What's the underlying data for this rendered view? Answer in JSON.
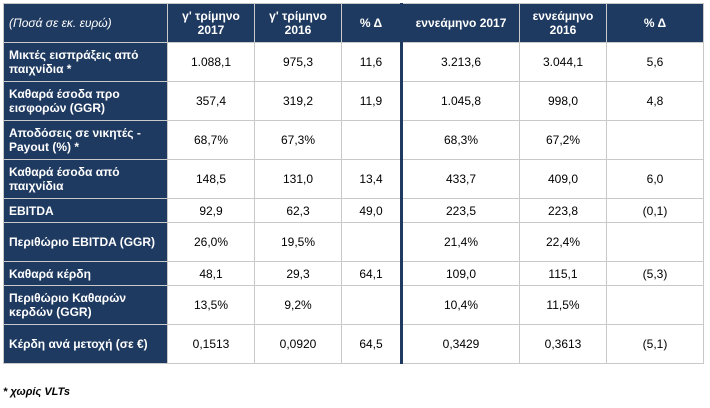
{
  "header": {
    "label": "(Ποσά σε εκ. ευρώ)",
    "columns": [
      "γ' τρίμηνο 2017",
      "γ' τρίμηνο 2016",
      "% Δ",
      "εννεάμηνο 2017",
      "εννεάμηνο 2016",
      "% Δ"
    ]
  },
  "rows": [
    {
      "label": "Μικτές εισπράξεις από παιχνίδια *",
      "values": [
        "1.088,1",
        "975,3",
        "11,6",
        "3.213,6",
        "3.044,1",
        "5,6"
      ]
    },
    {
      "label": "Καθαρά έσοδα προ εισφορών (GGR)",
      "values": [
        "357,4",
        "319,2",
        "11,9",
        "1.045,8",
        "998,0",
        "4,8"
      ]
    },
    {
      "label": "Αποδόσεις σε νικητές - Payout (%) *",
      "values": [
        "68,7%",
        "67,3%",
        "",
        "68,3%",
        "67,2%",
        ""
      ]
    },
    {
      "label": "Καθαρά έσοδα από παιχνίδια",
      "values": [
        "148,5",
        "131,0",
        "13,4",
        "433,7",
        "409,0",
        "6,0"
      ]
    },
    {
      "label": "EBITDA",
      "values": [
        "92,9",
        "62,3",
        "49,0",
        "223,5",
        "223,8",
        "(0,1)"
      ]
    },
    {
      "label": "Περιθώριο EBITDA (GGR)",
      "values": [
        "26,0%",
        "19,5%",
        "",
        "21,4%",
        "22,4%",
        ""
      ]
    },
    {
      "label": "Καθαρά κέρδη",
      "values": [
        "48,1",
        "29,3",
        "64,1",
        "109,0",
        "115,1",
        "(5,3)"
      ]
    },
    {
      "label": "Περιθώριο Καθαρών κερδών (GGR)",
      "values": [
        "13,5%",
        "9,2%",
        "",
        "10,4%",
        "11,5%",
        ""
      ]
    },
    {
      "label": "Κέρδη ανά μετοχή (σε €)",
      "values": [
        "0,1513",
        "0,0920",
        "64,5",
        "0,3429",
        "0,3613",
        "(5,1)"
      ]
    }
  ],
  "footnote": "* χωρίς VLTs"
}
